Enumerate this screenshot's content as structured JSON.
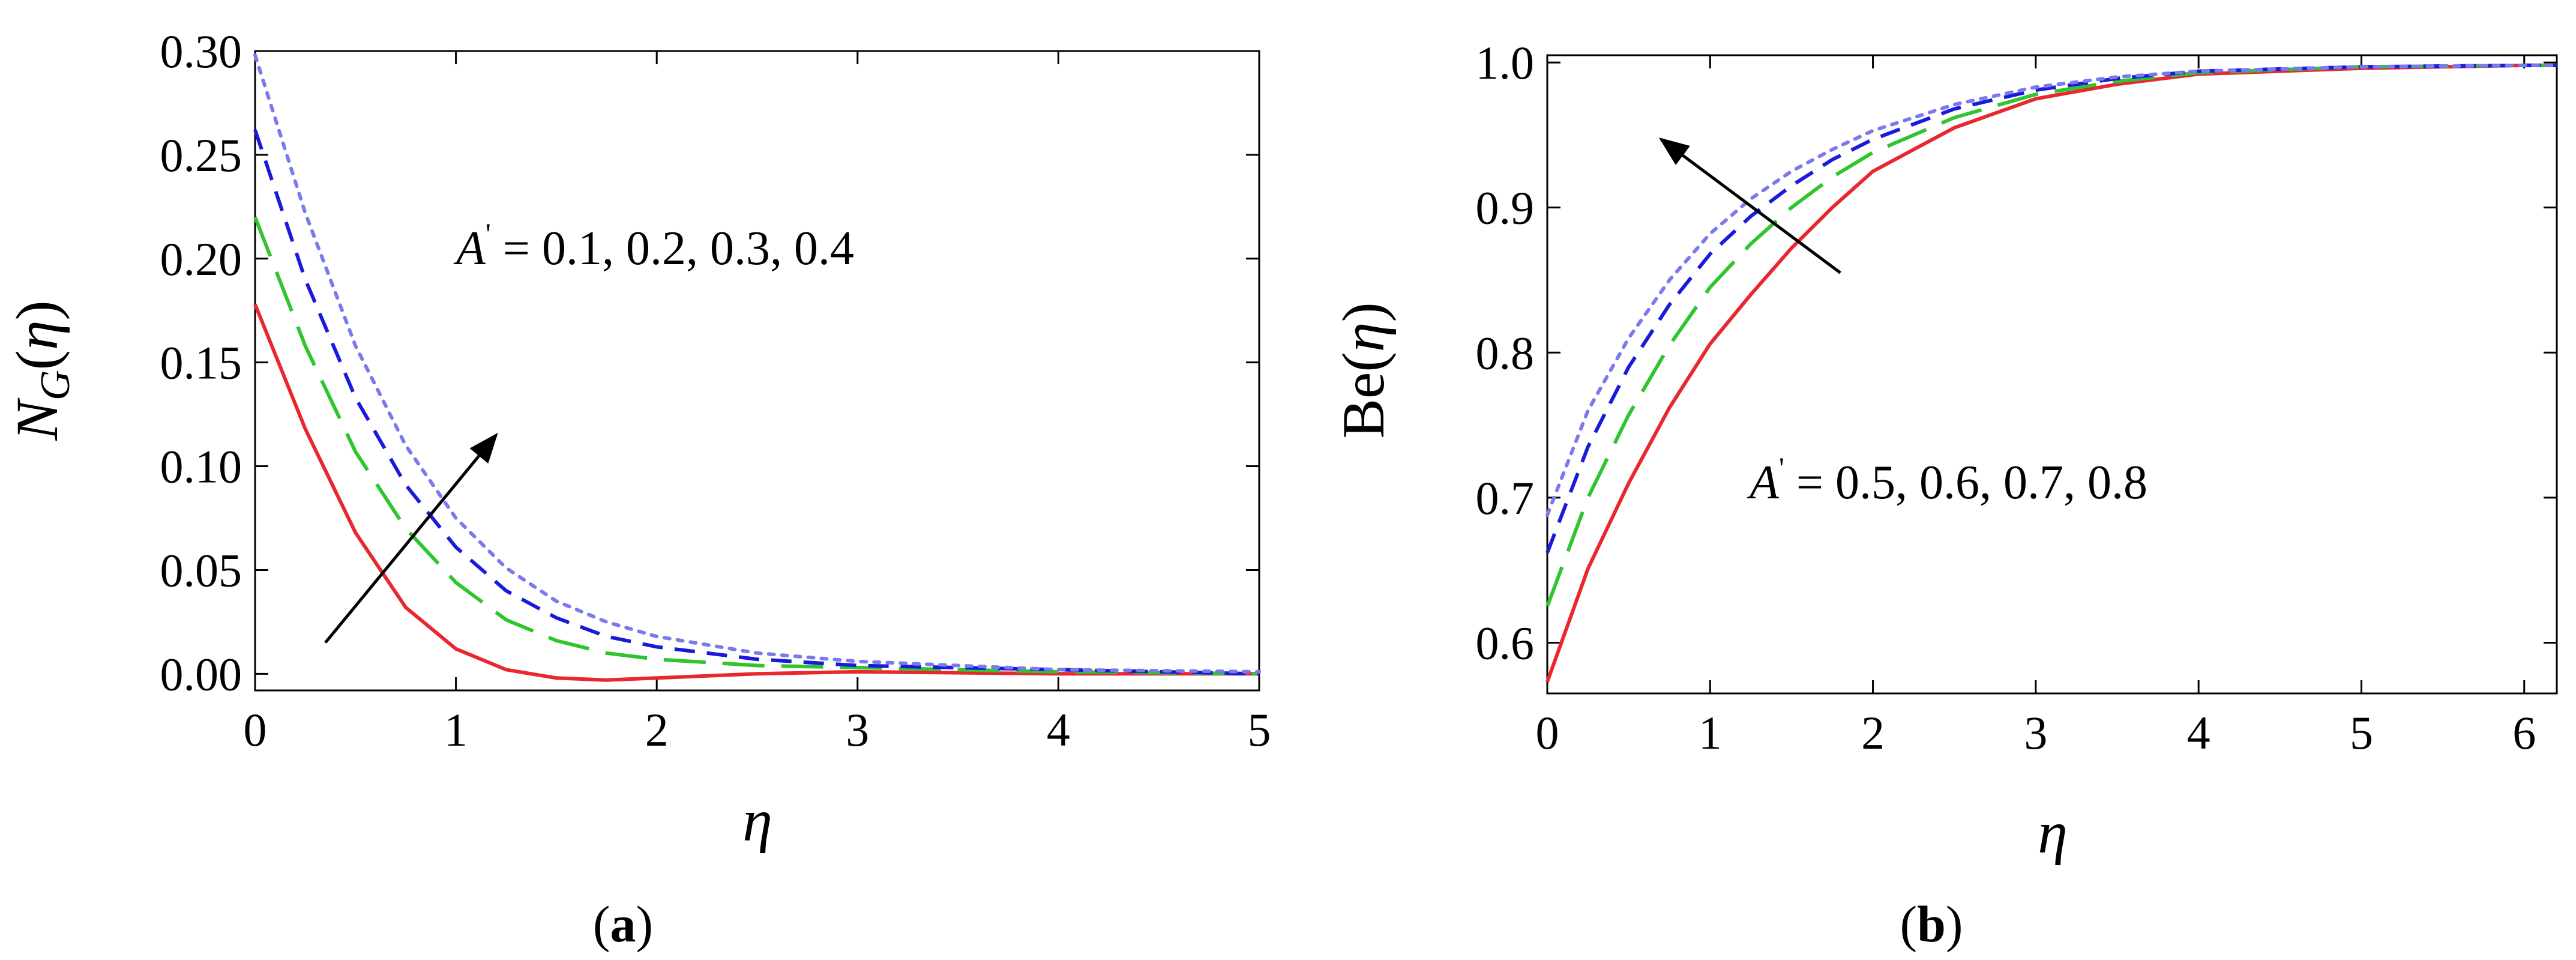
{
  "chart_data": [
    {
      "type": "line",
      "panel_label": "a",
      "xlabel": "η",
      "ylabel": "N_G(η)",
      "xlim": [
        0,
        5
      ],
      "ylim": [
        -0.008,
        0.3
      ],
      "x_ticks": [
        "0",
        "1",
        "2",
        "3",
        "4",
        "5"
      ],
      "y_ticks": [
        "0.00",
        "0.05",
        "0.10",
        "0.15",
        "0.20",
        "0.25",
        "0.30"
      ],
      "annotation": {
        "symbol": "A",
        "prime": "'",
        "text": " = 0.1, 0.2, 0.3, 0.4"
      },
      "arrow": {
        "from": [
          0.35,
          0.015
        ],
        "to": [
          1.2,
          0.115
        ]
      },
      "series": [
        {
          "color": "#e8282e",
          "dash": "solid",
          "points": [
            [
              0,
              0.178
            ],
            [
              0.25,
              0.118
            ],
            [
              0.5,
              0.068
            ],
            [
              0.75,
              0.032
            ],
            [
              1.0,
              0.012
            ],
            [
              1.25,
              0.002
            ],
            [
              1.5,
              -0.002
            ],
            [
              1.75,
              -0.003
            ],
            [
              2.0,
              -0.002
            ],
            [
              2.5,
              0.0
            ],
            [
              3.0,
              0.001
            ],
            [
              4.0,
              0.0
            ],
            [
              5.0,
              0.0
            ]
          ]
        },
        {
          "color": "#2ec52e",
          "dash": "long",
          "points": [
            [
              0,
              0.22
            ],
            [
              0.25,
              0.158
            ],
            [
              0.5,
              0.107
            ],
            [
              0.75,
              0.07
            ],
            [
              1.0,
              0.044
            ],
            [
              1.25,
              0.026
            ],
            [
              1.5,
              0.016
            ],
            [
              1.75,
              0.01
            ],
            [
              2.0,
              0.007
            ],
            [
              2.5,
              0.004
            ],
            [
              3.0,
              0.003
            ],
            [
              3.5,
              0.002
            ],
            [
              4.0,
              0.001
            ],
            [
              5.0,
              0.0
            ]
          ]
        },
        {
          "color": "#1a1adc",
          "dash": "medium",
          "points": [
            [
              0,
              0.262
            ],
            [
              0.25,
              0.19
            ],
            [
              0.5,
              0.133
            ],
            [
              0.75,
              0.091
            ],
            [
              1.0,
              0.061
            ],
            [
              1.25,
              0.04
            ],
            [
              1.5,
              0.027
            ],
            [
              1.75,
              0.018
            ],
            [
              2.0,
              0.013
            ],
            [
              2.5,
              0.007
            ],
            [
              3.0,
              0.004
            ],
            [
              3.5,
              0.003
            ],
            [
              4.0,
              0.002
            ],
            [
              5.0,
              0.0
            ]
          ]
        },
        {
          "color": "#7a7aee",
          "dash": "dotted",
          "points": [
            [
              0,
              0.298
            ],
            [
              0.25,
              0.222
            ],
            [
              0.5,
              0.158
            ],
            [
              0.75,
              0.11
            ],
            [
              1.0,
              0.075
            ],
            [
              1.25,
              0.051
            ],
            [
              1.5,
              0.035
            ],
            [
              1.75,
              0.025
            ],
            [
              2.0,
              0.018
            ],
            [
              2.5,
              0.01
            ],
            [
              3.0,
              0.006
            ],
            [
              3.5,
              0.004
            ],
            [
              4.0,
              0.002
            ],
            [
              5.0,
              0.001
            ]
          ]
        }
      ]
    },
    {
      "type": "line",
      "panel_label": "b",
      "xlabel": "η",
      "ylabel": "Be(η)",
      "xlim": [
        0,
        6.2
      ],
      "ylim": [
        0.565,
        1.005
      ],
      "x_ticks": [
        "0",
        "1",
        "2",
        "3",
        "4",
        "5",
        "6"
      ],
      "y_ticks": [
        "0.6",
        "0.7",
        "0.8",
        "0.9",
        "1.0"
      ],
      "annotation": {
        "symbol": "A",
        "prime": "'",
        "text": " = 0.5, 0.6, 0.7, 0.8"
      },
      "arrow": {
        "from": [
          1.8,
          0.855
        ],
        "to": [
          0.7,
          0.947
        ]
      },
      "series": [
        {
          "color": "#e8282e",
          "dash": "solid",
          "points": [
            [
              0,
              0.573
            ],
            [
              0.25,
              0.651
            ],
            [
              0.5,
              0.71
            ],
            [
              0.75,
              0.762
            ],
            [
              1.0,
              0.806
            ],
            [
              1.25,
              0.84
            ],
            [
              1.5,
              0.872
            ],
            [
              1.75,
              0.9
            ],
            [
              2.0,
              0.925
            ],
            [
              2.5,
              0.955
            ],
            [
              3.0,
              0.975
            ],
            [
              3.5,
              0.985
            ],
            [
              4.0,
              0.992
            ],
            [
              5.0,
              0.996
            ],
            [
              6.0,
              0.998
            ],
            [
              6.2,
              0.998
            ]
          ]
        },
        {
          "color": "#2ec52e",
          "dash": "long",
          "points": [
            [
              0,
              0.625
            ],
            [
              0.25,
              0.7
            ],
            [
              0.5,
              0.757
            ],
            [
              0.75,
              0.805
            ],
            [
              1.0,
              0.845
            ],
            [
              1.25,
              0.875
            ],
            [
              1.5,
              0.9
            ],
            [
              1.75,
              0.921
            ],
            [
              2.0,
              0.938
            ],
            [
              2.5,
              0.962
            ],
            [
              3.0,
              0.978
            ],
            [
              3.5,
              0.987
            ],
            [
              4.0,
              0.993
            ],
            [
              5.0,
              0.997
            ],
            [
              6.0,
              0.998
            ],
            [
              6.2,
              0.998
            ]
          ]
        },
        {
          "color": "#1a1adc",
          "dash": "medium",
          "points": [
            [
              0,
              0.662
            ],
            [
              0.25,
              0.735
            ],
            [
              0.5,
              0.79
            ],
            [
              0.75,
              0.833
            ],
            [
              1.0,
              0.868
            ],
            [
              1.25,
              0.894
            ],
            [
              1.5,
              0.915
            ],
            [
              1.75,
              0.933
            ],
            [
              2.0,
              0.947
            ],
            [
              2.5,
              0.968
            ],
            [
              3.0,
              0.981
            ],
            [
              3.5,
              0.989
            ],
            [
              4.0,
              0.994
            ],
            [
              5.0,
              0.997
            ],
            [
              6.0,
              0.998
            ],
            [
              6.2,
              0.998
            ]
          ]
        },
        {
          "color": "#7a7aee",
          "dash": "dotted",
          "points": [
            [
              0,
              0.688
            ],
            [
              0.25,
              0.76
            ],
            [
              0.5,
              0.81
            ],
            [
              0.75,
              0.85
            ],
            [
              1.0,
              0.882
            ],
            [
              1.25,
              0.906
            ],
            [
              1.5,
              0.925
            ],
            [
              1.75,
              0.94
            ],
            [
              2.0,
              0.953
            ],
            [
              2.5,
              0.971
            ],
            [
              3.0,
              0.983
            ],
            [
              3.5,
              0.99
            ],
            [
              4.0,
              0.994
            ],
            [
              5.0,
              0.997
            ],
            [
              6.0,
              0.998
            ],
            [
              6.2,
              0.998
            ]
          ]
        }
      ]
    }
  ]
}
